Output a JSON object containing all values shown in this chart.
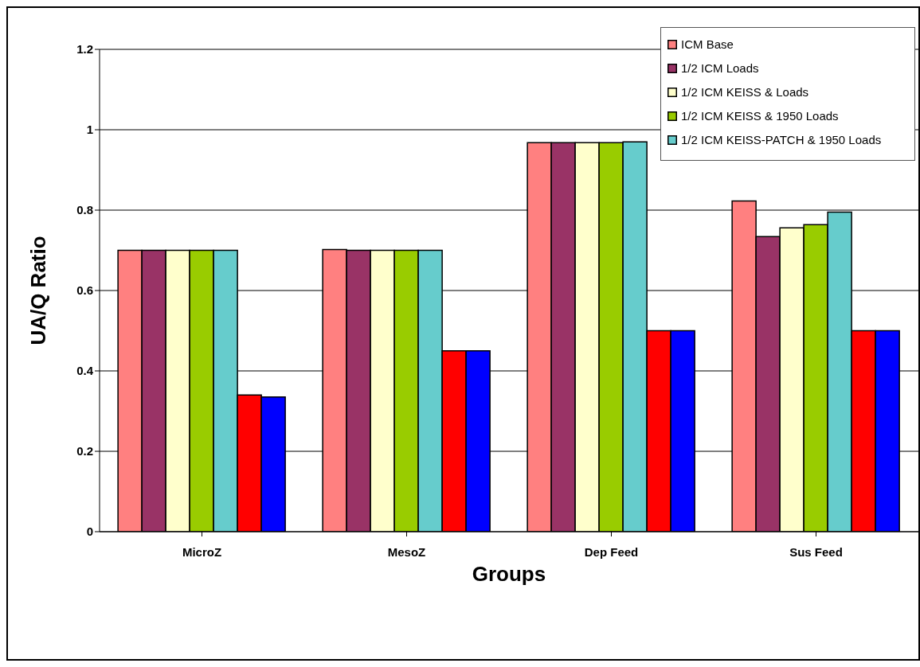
{
  "chart_data": {
    "type": "bar",
    "xlabel": "Groups",
    "ylabel": "UA/Q Ratio",
    "categories": [
      "MicroZ",
      "MesoZ",
      "Dep Feed",
      "Sus Feed"
    ],
    "series": [
      {
        "name": "ICM Base",
        "color": "#ff8080",
        "values": [
          0.7,
          0.702,
          0.968,
          0.823
        ]
      },
      {
        "name": "1/2 ICM Loads",
        "color": "#993366",
        "values": [
          0.7,
          0.7,
          0.968,
          0.734
        ]
      },
      {
        "name": "1/2 ICM KEISS & Loads",
        "color": "#ffffcc",
        "values": [
          0.7,
          0.7,
          0.968,
          0.756
        ]
      },
      {
        "name": "1/2 ICM KEISS & 1950 Loads",
        "color": "#99cc00",
        "values": [
          0.7,
          0.7,
          0.968,
          0.764
        ]
      },
      {
        "name": "1/2 ICM KEISS-PATCH & 1950 Loads",
        "color": "#66cccc",
        "values": [
          0.7,
          0.7,
          0.97,
          0.795
        ]
      },
      {
        "color": "#ff0000",
        "values": [
          0.34,
          0.45,
          0.5,
          0.5
        ]
      },
      {
        "color": "#0000ff",
        "values": [
          0.335,
          0.45,
          0.5,
          0.5
        ]
      }
    ],
    "ylim": [
      0,
      1.2
    ],
    "yticks": [
      0,
      0.2,
      0.4,
      0.6,
      0.8,
      1,
      1.2
    ],
    "grid": "y",
    "legend": "top right"
  }
}
